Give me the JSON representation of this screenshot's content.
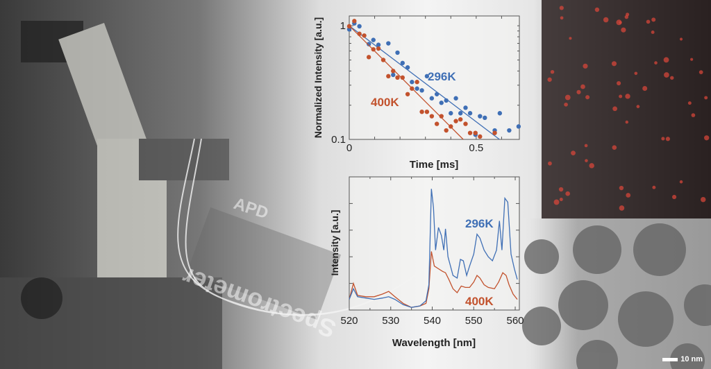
{
  "colors": {
    "series_296K": "#3f6fb5",
    "series_400K": "#c2522d"
  },
  "scale_bar": "10 nm",
  "photo_labels": [
    "APD",
    "Spectrometer"
  ],
  "chart_data": [
    {
      "type": "scatter",
      "xlabel": "Time [ms]",
      "ylabel": "Normalized Intensity [a.u.]",
      "xlim": [
        0,
        0.67
      ],
      "ylim": [
        0.1,
        1.22
      ],
      "yscale": "log",
      "xticks": [
        0,
        0.5
      ],
      "xtick_labels": [
        "0",
        "0.5"
      ],
      "yticks": [
        0.1,
        1
      ],
      "ytick_labels": [
        "0.1",
        "1"
      ],
      "grid": false,
      "series": [
        {
          "name": "296K",
          "color": "#3f6fb5",
          "points": [
            [
              0,
              0.93
            ],
            [
              0.02,
              1.05
            ],
            [
              0.04,
              0.99
            ],
            [
              0.077,
              0.69
            ],
            [
              0.095,
              0.75
            ],
            [
              0.115,
              0.68
            ],
            [
              0.154,
              0.7
            ],
            [
              0.173,
              0.37
            ],
            [
              0.19,
              0.58
            ],
            [
              0.21,
              0.47
            ],
            [
              0.23,
              0.43
            ],
            [
              0.247,
              0.32
            ],
            [
              0.267,
              0.28
            ],
            [
              0.286,
              0.27
            ],
            [
              0.306,
              0.36
            ],
            [
              0.325,
              0.23
            ],
            [
              0.345,
              0.25
            ],
            [
              0.363,
              0.21
            ],
            [
              0.382,
              0.22
            ],
            [
              0.4,
              0.17
            ],
            [
              0.42,
              0.23
            ],
            [
              0.438,
              0.17
            ],
            [
              0.458,
              0.19
            ],
            [
              0.476,
              0.17
            ],
            [
              0.497,
              0.11
            ],
            [
              0.515,
              0.16
            ],
            [
              0.534,
              0.155
            ],
            [
              0.573,
              0.12
            ],
            [
              0.593,
              0.17
            ],
            [
              0.63,
              0.12
            ],
            [
              0.667,
              0.13
            ]
          ],
          "fit": {
            "form": "exp",
            "I0": 1.0,
            "tau_ms": 0.257
          }
        },
        {
          "name": "400K",
          "color": "#c2522d",
          "points": [
            [
              0,
              0.99
            ],
            [
              0.02,
              1.1
            ],
            [
              0.04,
              0.85
            ],
            [
              0.059,
              0.82
            ],
            [
              0.077,
              0.53
            ],
            [
              0.095,
              0.62
            ],
            [
              0.115,
              0.63
            ],
            [
              0.134,
              0.5
            ],
            [
              0.154,
              0.36
            ],
            [
              0.173,
              0.4
            ],
            [
              0.19,
              0.35
            ],
            [
              0.21,
              0.35
            ],
            [
              0.23,
              0.25
            ],
            [
              0.247,
              0.28
            ],
            [
              0.267,
              0.32
            ],
            [
              0.286,
              0.175
            ],
            [
              0.306,
              0.175
            ],
            [
              0.325,
              0.16
            ],
            [
              0.345,
              0.137
            ],
            [
              0.363,
              0.16
            ],
            [
              0.382,
              0.12
            ],
            [
              0.4,
              0.13
            ],
            [
              0.42,
              0.145
            ],
            [
              0.438,
              0.15
            ],
            [
              0.458,
              0.137
            ],
            [
              0.476,
              0.114
            ],
            [
              0.497,
              0.114
            ],
            [
              0.515,
              0.106
            ],
            [
              0.573,
              0.114
            ]
          ],
          "fit": {
            "form": "exp",
            "I0": 1.0,
            "tau_ms": 0.195
          }
        }
      ]
    },
    {
      "type": "line",
      "xlabel": "Wavelength [nm]",
      "ylabel": "Intensity [a.u.]",
      "xlim": [
        520,
        561
      ],
      "ylim": [
        0,
        1
      ],
      "xticks": [
        520,
        530,
        540,
        550,
        560
      ],
      "xtick_labels": [
        "520",
        "530",
        "540",
        "550",
        "560"
      ],
      "ytick_labels": [],
      "grid": false,
      "series": [
        {
          "name": "296K",
          "color": "#3f6fb5",
          "points": [
            [
              520,
              0.08
            ],
            [
              521,
              0.16
            ],
            [
              522,
              0.1
            ],
            [
              524,
              0.09
            ],
            [
              526,
              0.08
            ],
            [
              528,
              0.09
            ],
            [
              529.5,
              0.1
            ],
            [
              531,
              0.08
            ],
            [
              533,
              0.04
            ],
            [
              535,
              0.02
            ],
            [
              537,
              0.03
            ],
            [
              538.5,
              0.07
            ],
            [
              539.2,
              0.19
            ],
            [
              539.8,
              0.91
            ],
            [
              540.3,
              0.77
            ],
            [
              540.8,
              0.45
            ],
            [
              541.5,
              0.62
            ],
            [
              542.2,
              0.56
            ],
            [
              542.8,
              0.45
            ],
            [
              543.2,
              0.61
            ],
            [
              543.8,
              0.4
            ],
            [
              545,
              0.26
            ],
            [
              546,
              0.24
            ],
            [
              546.8,
              0.38
            ],
            [
              547.5,
              0.37
            ],
            [
              548.3,
              0.26
            ],
            [
              549,
              0.33
            ],
            [
              550,
              0.42
            ],
            [
              550.8,
              0.57
            ],
            [
              551.5,
              0.54
            ],
            [
              552.5,
              0.45
            ],
            [
              553.5,
              0.4
            ],
            [
              554.5,
              0.37
            ],
            [
              555.5,
              0.45
            ],
            [
              556.2,
              0.67
            ],
            [
              556.8,
              0.45
            ],
            [
              557.5,
              0.84
            ],
            [
              558.2,
              0.81
            ],
            [
              559,
              0.42
            ],
            [
              559.8,
              0.31
            ],
            [
              560.5,
              0.23
            ]
          ]
        },
        {
          "name": "400K",
          "color": "#c2522d",
          "points": [
            [
              520,
              0.08
            ],
            [
              521,
              0.2
            ],
            [
              522,
              0.11
            ],
            [
              524,
              0.1
            ],
            [
              526,
              0.1
            ],
            [
              528,
              0.12
            ],
            [
              529.5,
              0.14
            ],
            [
              531,
              0.1
            ],
            [
              533,
              0.05
            ],
            [
              535,
              0.02
            ],
            [
              537,
              0.03
            ],
            [
              538.5,
              0.05
            ],
            [
              539.2,
              0.16
            ],
            [
              539.8,
              0.44
            ],
            [
              540.5,
              0.33
            ],
            [
              541.5,
              0.31
            ],
            [
              542.5,
              0.29
            ],
            [
              543.2,
              0.28
            ],
            [
              544,
              0.23
            ],
            [
              545,
              0.16
            ],
            [
              546,
              0.13
            ],
            [
              547,
              0.18
            ],
            [
              548,
              0.17
            ],
            [
              549,
              0.17
            ],
            [
              550,
              0.21
            ],
            [
              550.8,
              0.26
            ],
            [
              551.5,
              0.24
            ],
            [
              552.5,
              0.19
            ],
            [
              553.5,
              0.17
            ],
            [
              555,
              0.16
            ],
            [
              556,
              0.21
            ],
            [
              557,
              0.28
            ],
            [
              557.8,
              0.26
            ],
            [
              558.5,
              0.19
            ],
            [
              559.5,
              0.12
            ],
            [
              560.5,
              0.08
            ]
          ]
        }
      ]
    }
  ]
}
